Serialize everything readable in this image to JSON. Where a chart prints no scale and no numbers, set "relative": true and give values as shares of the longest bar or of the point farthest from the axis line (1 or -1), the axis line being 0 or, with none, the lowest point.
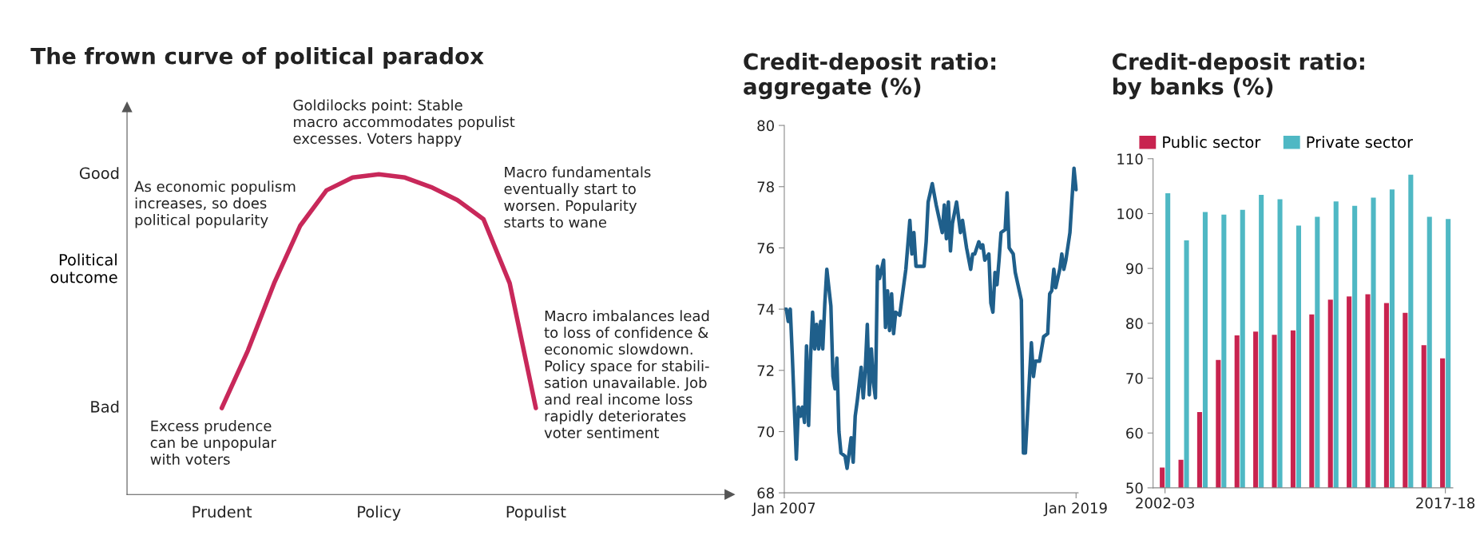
{
  "chart_data": [
    {
      "type": "line",
      "title": "The frown curve of political paradox",
      "ylabel": "Political\noutcome",
      "relative": true,
      "categories": [
        "Prudent",
        null,
        null,
        null,
        null,
        null,
        "Policy",
        null,
        null,
        null,
        null,
        null,
        "Populist"
      ],
      "series": [
        {
          "color": "#c8285a",
          "values": [
            0.27,
            0.45,
            0.66,
            0.84,
            0.95,
            0.99,
            1.0,
            0.99,
            0.96,
            0.92,
            0.86,
            0.66,
            0.27
          ]
        }
      ],
      "annotations": [
        "Good",
        "Bad",
        "Goldilocks point: Stable\nmacro accommodates populist\nexcesses. Voters happy",
        "As economic populism\nincreases, so does\npolitical popularity",
        "Macro fundamentals\neventually start to\nworsen. Popularity\nstarts to wane",
        "Excess prudence\ncan be unpopular\nwith voters",
        "Macro imbalances lead\nto loss of confidence &\neconomic slowdown.\nPolicy space for stabili-\nsation unavailable. Job\nand real income loss\nrapidly deteriorates\nvoter sentiment"
      ]
    },
    {
      "type": "line",
      "title": "Credit-deposit ratio:\naggregate (%)",
      "xlim": [
        "2007-01",
        "2019-02"
      ],
      "xticks": [
        {
          "value": "2007-01",
          "label": "Jan 2007"
        },
        {
          "value": "2019-01",
          "label": "Jan 2019"
        }
      ],
      "ylim": [
        68,
        80
      ],
      "yticks": [
        68,
        70,
        72,
        74,
        76,
        78,
        80
      ],
      "series": [
        {
          "color": "#1f5f8b",
          "x": [
            "2007-01",
            "2007-02",
            "2007-03",
            "2007-04",
            "2007-05",
            "2007-07",
            "2007-08",
            "2007-09",
            "2007-10",
            "2007-11",
            "2007-12",
            "2008-01",
            "2008-02",
            "2008-03",
            "2008-04",
            "2008-05",
            "2008-06",
            "2008-07",
            "2008-08",
            "2008-09",
            "2008-10",
            "2008-12",
            "2009-01",
            "2009-02",
            "2009-03",
            "2009-04",
            "2009-05",
            "2009-07",
            "2009-08",
            "2009-10",
            "2009-11",
            "2009-12",
            "2010-01",
            "2010-03",
            "2010-04",
            "2010-05",
            "2010-06",
            "2010-07",
            "2010-08",
            "2010-09",
            "2010-10",
            "2010-11",
            "2010-12",
            "2011-02",
            "2011-03",
            "2011-04",
            "2011-05",
            "2011-06",
            "2011-07",
            "2011-08",
            "2011-10",
            "2012-01",
            "2012-03",
            "2012-04",
            "2012-05",
            "2012-06",
            "2012-10",
            "2012-11",
            "2012-12",
            "2013-01",
            "2013-02",
            "2013-04",
            "2013-05",
            "2013-07",
            "2013-08",
            "2013-09",
            "2013-10",
            "2013-11",
            "2013-12",
            "2014-02",
            "2014-04",
            "2014-05",
            "2014-07",
            "2014-09",
            "2014-10",
            "2014-11",
            "2015-01",
            "2015-02",
            "2015-03",
            "2015-04",
            "2015-06",
            "2015-07",
            "2015-08",
            "2015-09",
            "2015-10",
            "2015-11",
            "2015-12",
            "2016-02",
            "2016-03",
            "2016-04",
            "2016-06",
            "2016-07",
            "2016-10",
            "2016-11",
            "2016-12",
            "2017-02",
            "2017-03",
            "2017-04",
            "2017-05",
            "2017-07",
            "2017-09",
            "2017-11",
            "2017-12",
            "2018-01",
            "2018-02",
            "2018-03",
            "2018-05",
            "2018-06",
            "2018-07",
            "2018-08",
            "2018-10",
            "2018-11",
            "2018-12",
            "2019-01"
          ],
          "values": [
            74.0,
            74.0,
            73.6,
            74.0,
            72.5,
            69.1,
            70.8,
            70.5,
            70.8,
            70.3,
            72.8,
            70.2,
            72.5,
            73.9,
            72.7,
            73.5,
            72.7,
            73.6,
            72.7,
            74.2,
            75.3,
            74.1,
            71.8,
            71.4,
            72.4,
            70.0,
            69.3,
            69.2,
            68.8,
            69.8,
            69.0,
            70.5,
            71.0,
            72.1,
            71.1,
            72.0,
            73.5,
            71.2,
            72.7,
            71.6,
            71.1,
            75.4,
            75.0,
            75.6,
            73.4,
            74.6,
            73.3,
            74.5,
            73.2,
            73.9,
            73.8,
            75.3,
            76.9,
            75.8,
            76.5,
            75.4,
            75.4,
            76.2,
            77.5,
            77.8,
            78.1,
            77.4,
            77.1,
            76.5,
            77.4,
            76.3,
            77.5,
            75.9,
            76.8,
            77.5,
            76.5,
            76.9,
            76.0,
            75.3,
            75.8,
            75.8,
            76.2,
            76.0,
            76.1,
            75.6,
            75.8,
            74.2,
            73.9,
            75.2,
            74.8,
            75.6,
            76.5,
            76.6,
            77.8,
            76.0,
            75.8,
            75.2,
            74.3,
            69.3,
            69.3,
            71.8,
            72.9,
            71.8,
            72.3,
            72.3,
            73.1,
            73.2,
            74.5,
            74.6,
            75.3,
            74.7,
            75.3,
            75.8,
            75.3,
            75.6,
            76.5,
            77.6,
            78.6,
            77.9
          ]
        }
      ]
    },
    {
      "type": "bar",
      "title": "Credit-deposit ratio:\nby banks (%)",
      "legend": "top left",
      "categories": [
        "2002-03",
        null,
        null,
        null,
        null,
        null,
        null,
        null,
        null,
        null,
        null,
        null,
        null,
        null,
        null,
        "2017-18"
      ],
      "ylim": [
        50,
        110
      ],
      "yticks": [
        50,
        60,
        70,
        80,
        90,
        100,
        110
      ],
      "series": [
        {
          "name": "Public sector",
          "color": "#c8234f",
          "values": [
            53.7,
            55.1,
            63.8,
            73.3,
            77.8,
            78.5,
            77.9,
            78.7,
            81.6,
            84.3,
            84.9,
            85.3,
            83.7,
            81.9,
            76.0,
            73.6
          ]
        },
        {
          "name": "Private sector",
          "color": "#4fb8c4",
          "values": [
            103.7,
            95.1,
            100.3,
            99.8,
            100.7,
            103.4,
            102.6,
            97.8,
            99.4,
            102.2,
            101.4,
            102.9,
            104.4,
            107.1,
            99.4,
            99.0
          ]
        }
      ]
    }
  ]
}
